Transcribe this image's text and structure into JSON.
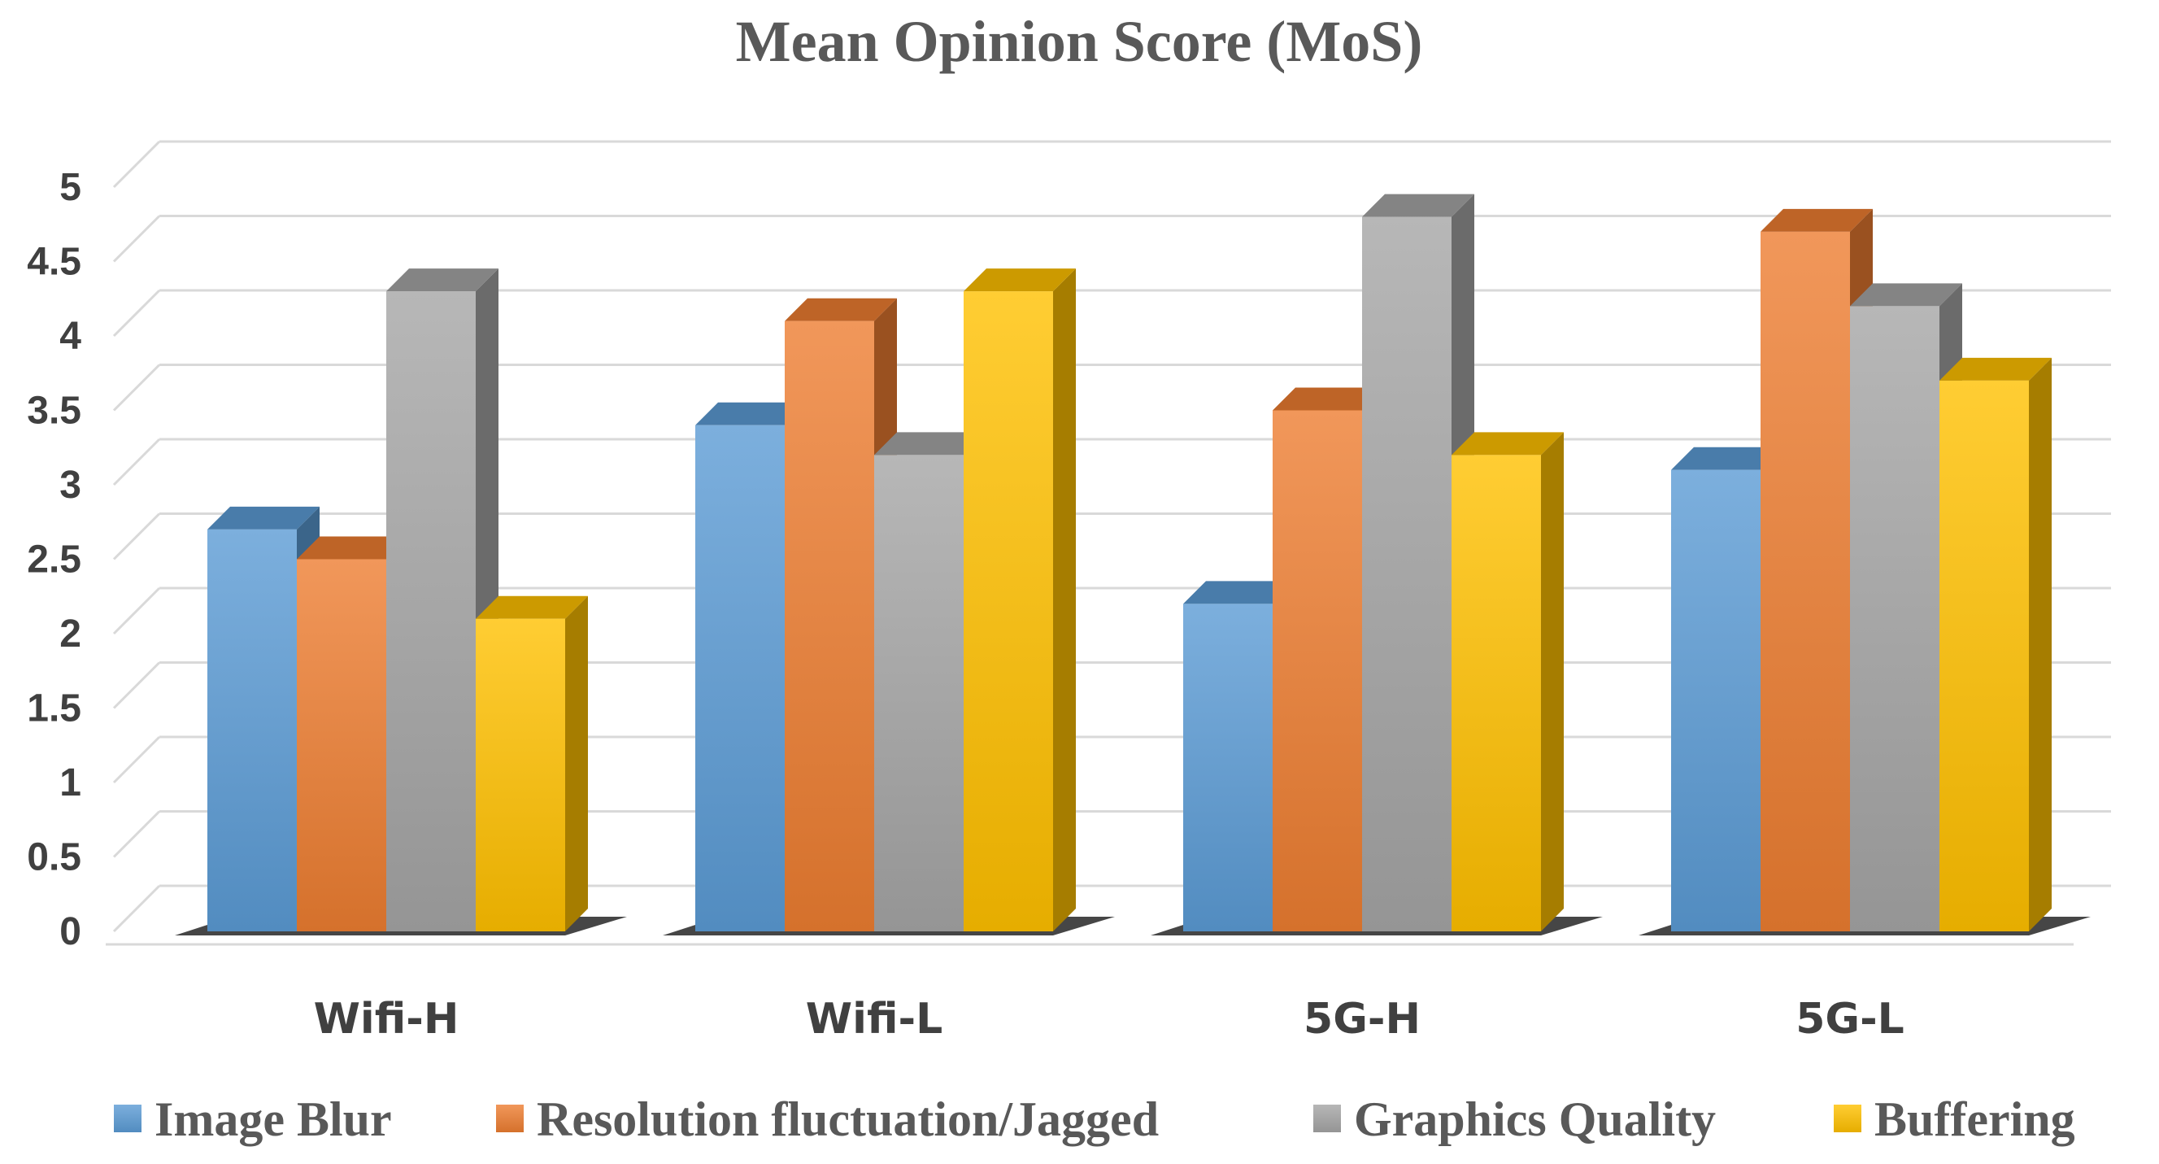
{
  "chart_data": {
    "type": "bar",
    "title": "Mean Opinion Score (MoS)",
    "categories": [
      "Wifi-H",
      "Wifi-L",
      "5G-H",
      "5G-L"
    ],
    "ylim": [
      0,
      5
    ],
    "yticks": [
      "0",
      "0.5",
      "1",
      "1.5",
      "2",
      "2.5",
      "3",
      "3.5",
      "4",
      "4.5",
      "5"
    ],
    "xlabel": "",
    "ylabel": "",
    "grid": true,
    "legend_position": "bottom",
    "series": [
      {
        "name": "Image Blur",
        "values": [
          2.7,
          3.4,
          2.2,
          3.1
        ],
        "color": "#5B9BD5"
      },
      {
        "name": "Resolution fluctuation/Jagged",
        "values": [
          2.5,
          4.1,
          3.5,
          4.7
        ],
        "color": "#ED7D31"
      },
      {
        "name": "Graphics Quality",
        "values": [
          4.3,
          3.2,
          4.8,
          4.2
        ],
        "color": "#A5A5A5"
      },
      {
        "name": "Buffering",
        "values": [
          2.1,
          4.3,
          3.2,
          3.7
        ],
        "color": "#FFC000"
      }
    ]
  }
}
